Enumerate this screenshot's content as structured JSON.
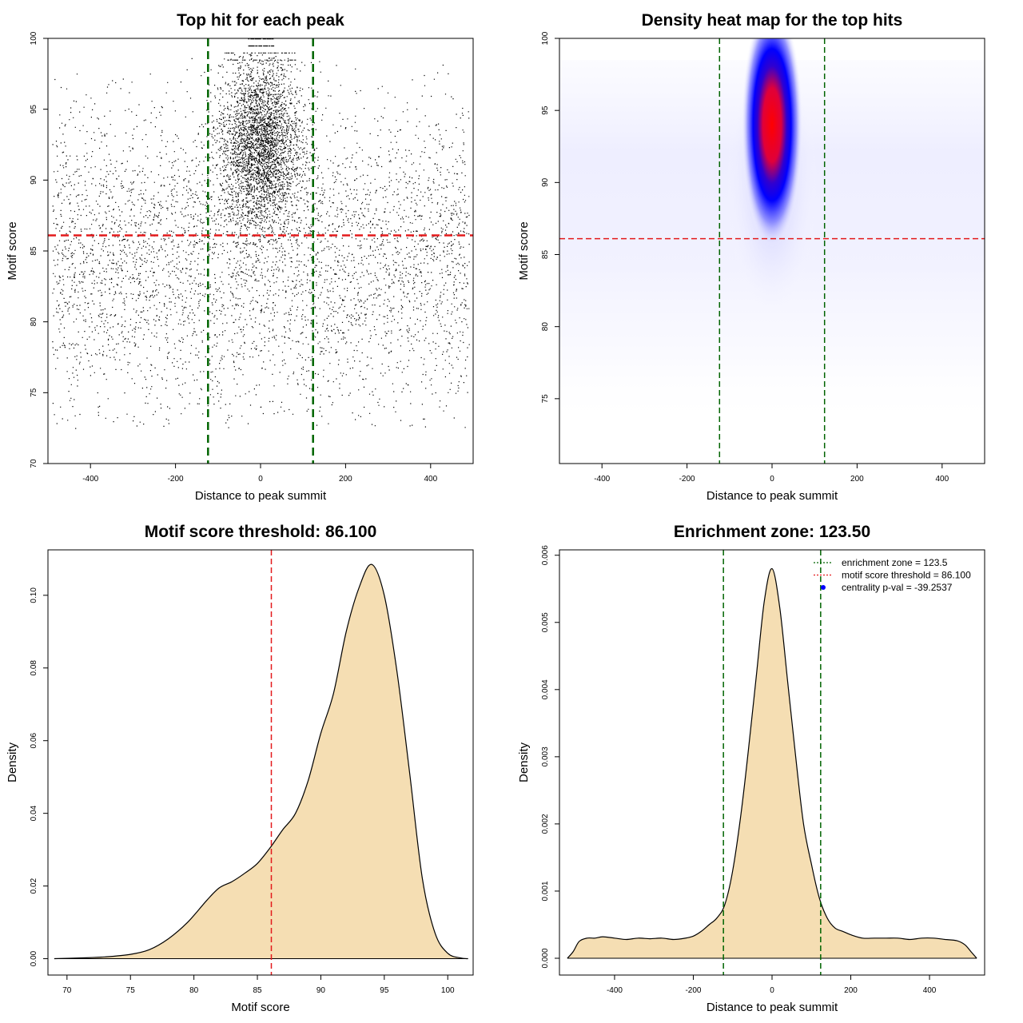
{
  "chart_data": [
    {
      "type": "scatter",
      "title": "Top hit for each peak",
      "xlabel": "Distance to peak summit",
      "ylabel": "Motif score",
      "xlim": [
        -500,
        500
      ],
      "ylim": [
        70,
        100
      ],
      "xticks": [
        -400,
        -200,
        0,
        200,
        400
      ],
      "yticks": [
        70,
        75,
        80,
        85,
        90,
        95,
        100
      ],
      "xtick_labels": [
        "-400",
        "-200",
        "0",
        "200",
        "400"
      ],
      "ytick_labels": [
        "70",
        "75",
        "80",
        "85",
        "90",
        "95",
        "100"
      ],
      "vlines": [
        -123.5,
        123.5
      ],
      "hline": 86.1,
      "colors": {
        "points": "#000000",
        "vline": "#006400",
        "hline": "#e31a1c"
      },
      "description_points": "dense cluster of top-hit points centered near 0 bp with scores 86-100; sparse uniform background from -500 to 500 bp with scores 72-98"
    },
    {
      "type": "heatmap",
      "title": "Density heat map for the top hits",
      "xlabel": "Distance to peak summit",
      "ylabel": "Motif score",
      "xlim": [
        -500,
        500
      ],
      "ylim": [
        70.5,
        100
      ],
      "xticks": [
        -400,
        -200,
        0,
        200,
        400
      ],
      "yticks": [
        75,
        80,
        85,
        90,
        95,
        100
      ],
      "xtick_labels": [
        "-400",
        "-200",
        "0",
        "200",
        "400"
      ],
      "ytick_labels": [
        "75",
        "80",
        "85",
        "90",
        "95",
        "100"
      ],
      "peak": {
        "x": 0,
        "y": 94
      },
      "vlines": [
        -123.5,
        123.5
      ],
      "hline": 86.1,
      "colors": {
        "low": "#ffffff",
        "mid": "#0000ff",
        "high": "#ff0000",
        "vline": "#006400",
        "hline": "#e31a1c"
      }
    },
    {
      "type": "area",
      "title": "Motif score threshold: 86.100",
      "xlabel": "Motif score",
      "ylabel": "Density",
      "xlim": [
        68.5,
        102
      ],
      "ylim": [
        -0.0045,
        0.1125
      ],
      "xticks": [
        70,
        75,
        80,
        85,
        90,
        95,
        100
      ],
      "yticks": [
        0,
        0.02,
        0.04,
        0.06,
        0.08,
        0.1
      ],
      "xtick_labels": [
        "70",
        "75",
        "80",
        "85",
        "90",
        "95",
        "100"
      ],
      "ytick_labels": [
        "0.00",
        "0.02",
        "0.04",
        "0.06",
        "0.08",
        "0.10"
      ],
      "x": [
        69,
        71,
        73,
        75,
        76.5,
        78,
        79.5,
        81,
        82,
        83,
        84,
        85,
        86,
        87,
        88,
        89,
        90,
        91,
        92,
        93,
        94,
        95,
        96,
        97,
        98,
        99,
        100,
        101,
        101.6
      ],
      "y": [
        0,
        0.0002,
        0.0005,
        0.0012,
        0.0025,
        0.0055,
        0.01,
        0.016,
        0.0195,
        0.0212,
        0.0235,
        0.0262,
        0.0305,
        0.0355,
        0.04,
        0.049,
        0.062,
        0.073,
        0.09,
        0.102,
        0.1085,
        0.1,
        0.079,
        0.051,
        0.022,
        0.007,
        0.0015,
        0.0002,
        0
      ],
      "vline": 86.1,
      "colors": {
        "fill": "#f5deb3",
        "line": "#000000",
        "vline": "#e31a1c"
      }
    },
    {
      "type": "area",
      "title": "Enrichment zone: 123.50",
      "xlabel": "Distance to peak summit",
      "ylabel": "Density",
      "xlim": [
        -540,
        540
      ],
      "ylim": [
        -0.00025,
        0.00608
      ],
      "xticks": [
        -400,
        -200,
        0,
        200,
        400
      ],
      "yticks": [
        0,
        0.001,
        0.002,
        0.003,
        0.004,
        0.005,
        0.006
      ],
      "xtick_labels": [
        "-400",
        "-200",
        "0",
        "200",
        "400"
      ],
      "ytick_labels": [
        "0.000",
        "0.001",
        "0.002",
        "0.003",
        "0.004",
        "0.005",
        "0.006"
      ],
      "x": [
        -520,
        -505,
        -490,
        -470,
        -450,
        -430,
        -400,
        -370,
        -340,
        -310,
        -280,
        -250,
        -220,
        -200,
        -180,
        -160,
        -140,
        -120,
        -100,
        -80,
        -60,
        -40,
        -20,
        0,
        20,
        40,
        60,
        80,
        100,
        120,
        140,
        160,
        180,
        200,
        230,
        260,
        290,
        320,
        350,
        380,
        410,
        440,
        470,
        490,
        505,
        520
      ],
      "y": [
        0,
        0.0001,
        0.00025,
        0.0003,
        0.0003,
        0.00032,
        0.0003,
        0.00028,
        0.0003,
        0.00029,
        0.0003,
        0.00028,
        0.0003,
        0.00033,
        0.0004,
        0.0005,
        0.0006,
        0.0008,
        0.0013,
        0.0021,
        0.0031,
        0.0042,
        0.0053,
        0.0058,
        0.0052,
        0.0041,
        0.003,
        0.002,
        0.0014,
        0.0009,
        0.0006,
        0.00045,
        0.0004,
        0.00035,
        0.0003,
        0.0003,
        0.0003,
        0.0003,
        0.00028,
        0.0003,
        0.0003,
        0.00028,
        0.00026,
        0.0002,
        0.0001,
        0
      ],
      "vlines": [
        -123.5,
        123.5
      ],
      "legend": [
        {
          "label": "enrichment zone = 123.5",
          "style": "line",
          "color": "#006400"
        },
        {
          "label": "motif score threshold = 86.100",
          "style": "line",
          "color": "#e31a1c"
        },
        {
          "label": "centrality p-val = -39.2537",
          "style": "point",
          "color": "#0000ff"
        }
      ],
      "legend_position": "top-right",
      "colors": {
        "fill": "#f5deb3",
        "line": "#000000",
        "vline": "#006400"
      }
    }
  ]
}
